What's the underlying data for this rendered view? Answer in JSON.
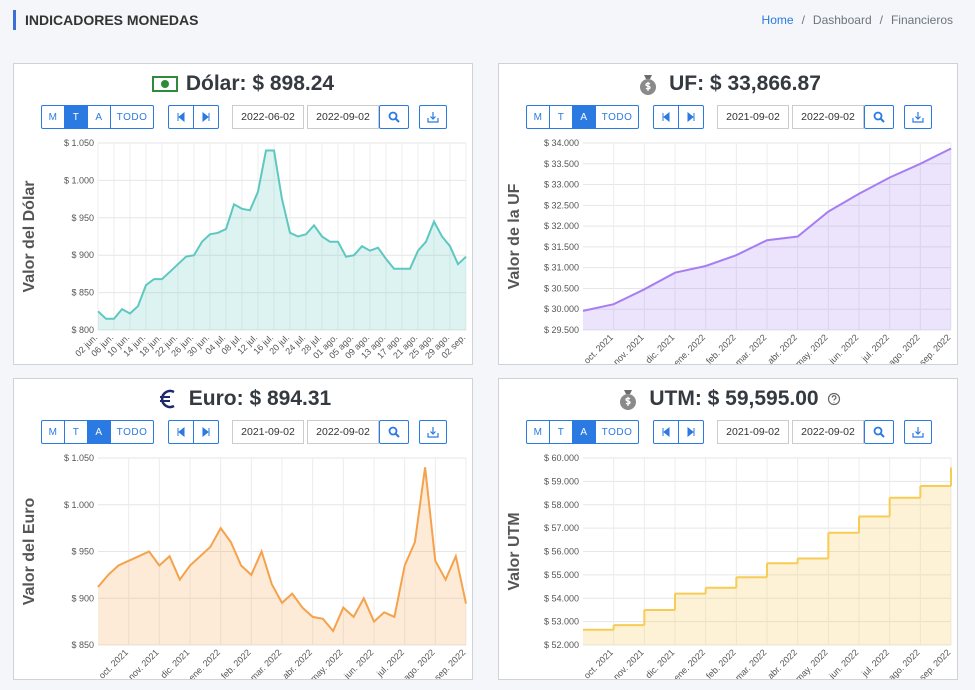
{
  "header": {
    "title": "INDICADORES MONEDAS",
    "breadcrumb": [
      "Home",
      "Dashboard",
      "Financieros"
    ],
    "separator": "/"
  },
  "panels": [
    {
      "icon": "bill",
      "buttons": [
        "M",
        "T",
        "A",
        "TODO"
      ],
      "active": 1,
      "date_from": "2022-06-02",
      "date_to": "2022-09-02"
    },
    {
      "icon": "bag",
      "buttons": [
        "M",
        "T",
        "A",
        "TODO"
      ],
      "active": 2,
      "date_from": "2021-09-02",
      "date_to": "2022-09-02"
    },
    {
      "icon": "euro",
      "buttons": [
        "M",
        "T",
        "A",
        "TODO"
      ],
      "active": 2,
      "date_from": "2021-09-02",
      "date_to": "2022-09-02"
    },
    {
      "icon": "bag",
      "help": true,
      "buttons": [
        "M",
        "T",
        "A",
        "TODO"
      ],
      "active": 2,
      "date_from": "2021-09-02",
      "date_to": "2022-09-02"
    }
  ],
  "chart_data": [
    {
      "type": "area",
      "title": "Dólar: $ 898.24",
      "y_label": "Valor del Dólar",
      "color": "#5ec8c0",
      "grid": true,
      "categories": [
        "02 jun.",
        null,
        "06 jun.",
        null,
        "10 jun.",
        null,
        "14 jun.",
        null,
        "18 jun.",
        null,
        "22 jun.",
        null,
        "26 jun.",
        null,
        "30 jun.",
        null,
        "04 jul.",
        null,
        "08 jul.",
        null,
        "12 jul.",
        null,
        "16 jul.",
        null,
        "20 jul.",
        null,
        "24 jul.",
        null,
        "28 jul.",
        null,
        "01 ago.",
        null,
        "05 ago.",
        null,
        "09 ago.",
        null,
        "13 ago.",
        null,
        "17 ago.",
        null,
        "21 ago.",
        null,
        "25 ago.",
        null,
        "29 ago.",
        null,
        "02 sep."
      ],
      "values": [
        825,
        815,
        815,
        828,
        822,
        832,
        860,
        868,
        868,
        878,
        888,
        898,
        900,
        918,
        928,
        930,
        935,
        968,
        962,
        960,
        985,
        1040,
        1040,
        975,
        930,
        925,
        928,
        940,
        925,
        918,
        918,
        898,
        900,
        912,
        906,
        910,
        895,
        882,
        882,
        882,
        906,
        918,
        945,
        925,
        912,
        888,
        898
      ],
      "ylim": [
        800,
        1050
      ],
      "yticks": [
        {
          "value": 800,
          "label": "$ 800"
        },
        {
          "value": 850,
          "label": "$ 850"
        },
        {
          "value": 900,
          "label": "$ 900"
        },
        {
          "value": 950,
          "label": "$ 950"
        },
        {
          "value": 1000,
          "label": "$ 1.000"
        },
        {
          "value": 1050,
          "label": "$ 1.050"
        }
      ]
    },
    {
      "type": "area",
      "title": "UF: $ 33,866.87",
      "y_label": "Valor de la UF",
      "color": "#a77ef2",
      "grid": true,
      "categories": [
        null,
        "oct. 2021",
        "nov. 2021",
        "dic. 2021",
        "ene. 2022",
        "feb. 2022",
        "mar. 2022",
        "abr. 2022",
        "may. 2022",
        "jun. 2022",
        "jul. 2022",
        "ago. 2022",
        "sep. 2022"
      ],
      "values": [
        29960,
        30120,
        30480,
        30880,
        31040,
        31300,
        31660,
        31750,
        32350,
        32780,
        33170,
        33500,
        33866.87
      ],
      "ylim": [
        29500,
        34000
      ],
      "yticks": [
        {
          "value": 29500,
          "label": "$ 29.500"
        },
        {
          "value": 30000,
          "label": "$ 30.000"
        },
        {
          "value": 30500,
          "label": "$ 30.500"
        },
        {
          "value": 31000,
          "label": "$ 31.000"
        },
        {
          "value": 31500,
          "label": "$ 31.500"
        },
        {
          "value": 32000,
          "label": "$ 32.000"
        },
        {
          "value": 32500,
          "label": "$ 32.500"
        },
        {
          "value": 33000,
          "label": "$ 33.000"
        },
        {
          "value": 33500,
          "label": "$ 33.500"
        },
        {
          "value": 34000,
          "label": "$ 34.000"
        }
      ]
    },
    {
      "type": "area",
      "title": "Euro: $ 894.31",
      "y_label": "Valor del Euro",
      "color": "#f5a24c",
      "grid": true,
      "categories": [
        null,
        null,
        null,
        "oct. 2021",
        null,
        null,
        "nov. 2021",
        null,
        null,
        "dic. 2021",
        null,
        null,
        "ene. 2022",
        null,
        null,
        "feb. 2022",
        null,
        null,
        "mar. 2022",
        null,
        null,
        "abr. 2022",
        null,
        null,
        "may. 2022",
        null,
        null,
        "jun. 2022",
        null,
        null,
        "jul. 2022",
        null,
        null,
        "ago. 2022",
        null,
        null,
        "sep. 2022"
      ],
      "values": [
        912,
        925,
        935,
        940,
        945,
        950,
        935,
        945,
        920,
        935,
        945,
        955,
        975,
        960,
        935,
        925,
        950,
        915,
        895,
        905,
        890,
        880,
        878,
        865,
        890,
        880,
        900,
        875,
        885,
        880,
        935,
        960,
        1040,
        940,
        920,
        945,
        894.31
      ],
      "ylim": [
        850,
        1050
      ],
      "yticks": [
        {
          "value": 850,
          "label": "$ 850"
        },
        {
          "value": 900,
          "label": "$ 900"
        },
        {
          "value": 950,
          "label": "$ 950"
        },
        {
          "value": 1000,
          "label": "$ 1.000"
        },
        {
          "value": 1050,
          "label": "$ 1.050"
        }
      ]
    },
    {
      "type": "area",
      "step": true,
      "title": "UTM: $ 59,595.00",
      "y_label": "Valor UTM",
      "color": "#f6cc56",
      "grid": true,
      "categories": [
        null,
        "oct. 2021",
        "nov. 2021",
        "dic. 2021",
        "ene. 2022",
        "feb. 2022",
        "mar. 2022",
        "abr. 2022",
        "may. 2022",
        "jun. 2022",
        "jul. 2022",
        "ago. 2022",
        "sep. 2022"
      ],
      "values": [
        52650,
        52850,
        53500,
        54200,
        54450,
        54900,
        55500,
        55700,
        56800,
        57500,
        58300,
        58800,
        59595
      ],
      "ylim": [
        52000,
        60000
      ],
      "yticks": [
        {
          "value": 52000,
          "label": "$ 52.000"
        },
        {
          "value": 53000,
          "label": "$ 53.000"
        },
        {
          "value": 54000,
          "label": "$ 54.000"
        },
        {
          "value": 55000,
          "label": "$ 55.000"
        },
        {
          "value": 56000,
          "label": "$ 56.000"
        },
        {
          "value": 57000,
          "label": "$ 57.000"
        },
        {
          "value": 58000,
          "label": "$ 58.000"
        },
        {
          "value": 59000,
          "label": "$ 59.000"
        },
        {
          "value": 60000,
          "label": "$ 60.000"
        }
      ]
    }
  ]
}
